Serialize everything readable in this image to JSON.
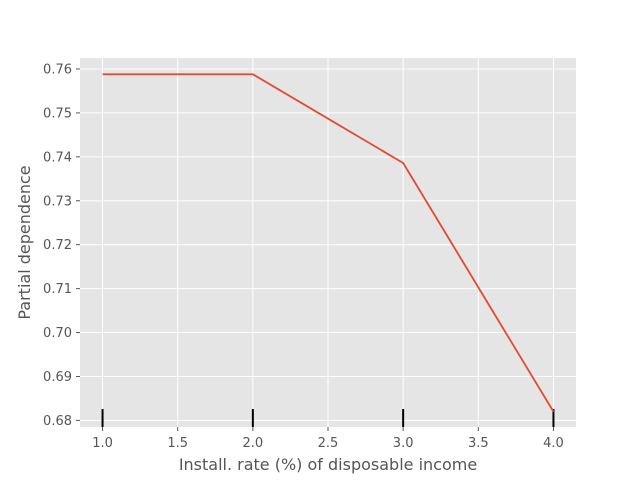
{
  "chart_data": {
    "type": "line",
    "title": "",
    "xlabel": "Install. rate (%) of disposable income",
    "ylabel": "Partial dependence",
    "xlim": [
      0.85,
      4.15
    ],
    "ylim": [
      0.6785,
      0.7625
    ],
    "xticks": [
      "1.0",
      "1.5",
      "2.0",
      "2.5",
      "3.0",
      "3.5",
      "4.0"
    ],
    "yticks": [
      "0.68",
      "0.69",
      "0.70",
      "0.71",
      "0.72",
      "0.73",
      "0.74",
      "0.75",
      "0.76"
    ],
    "grid": true,
    "series": [
      {
        "x": [
          1.0,
          2.0,
          3.0,
          4.0
        ],
        "y": [
          0.7588,
          0.7588,
          0.7386,
          0.682
        ]
      }
    ],
    "rug": [
      1.0,
      2.0,
      3.0,
      4.0
    ],
    "colors": {
      "background": "#e5e5e5",
      "grid": "#ffffff",
      "line": "#e24a33",
      "rug": "#000000",
      "text": "#555555"
    }
  }
}
